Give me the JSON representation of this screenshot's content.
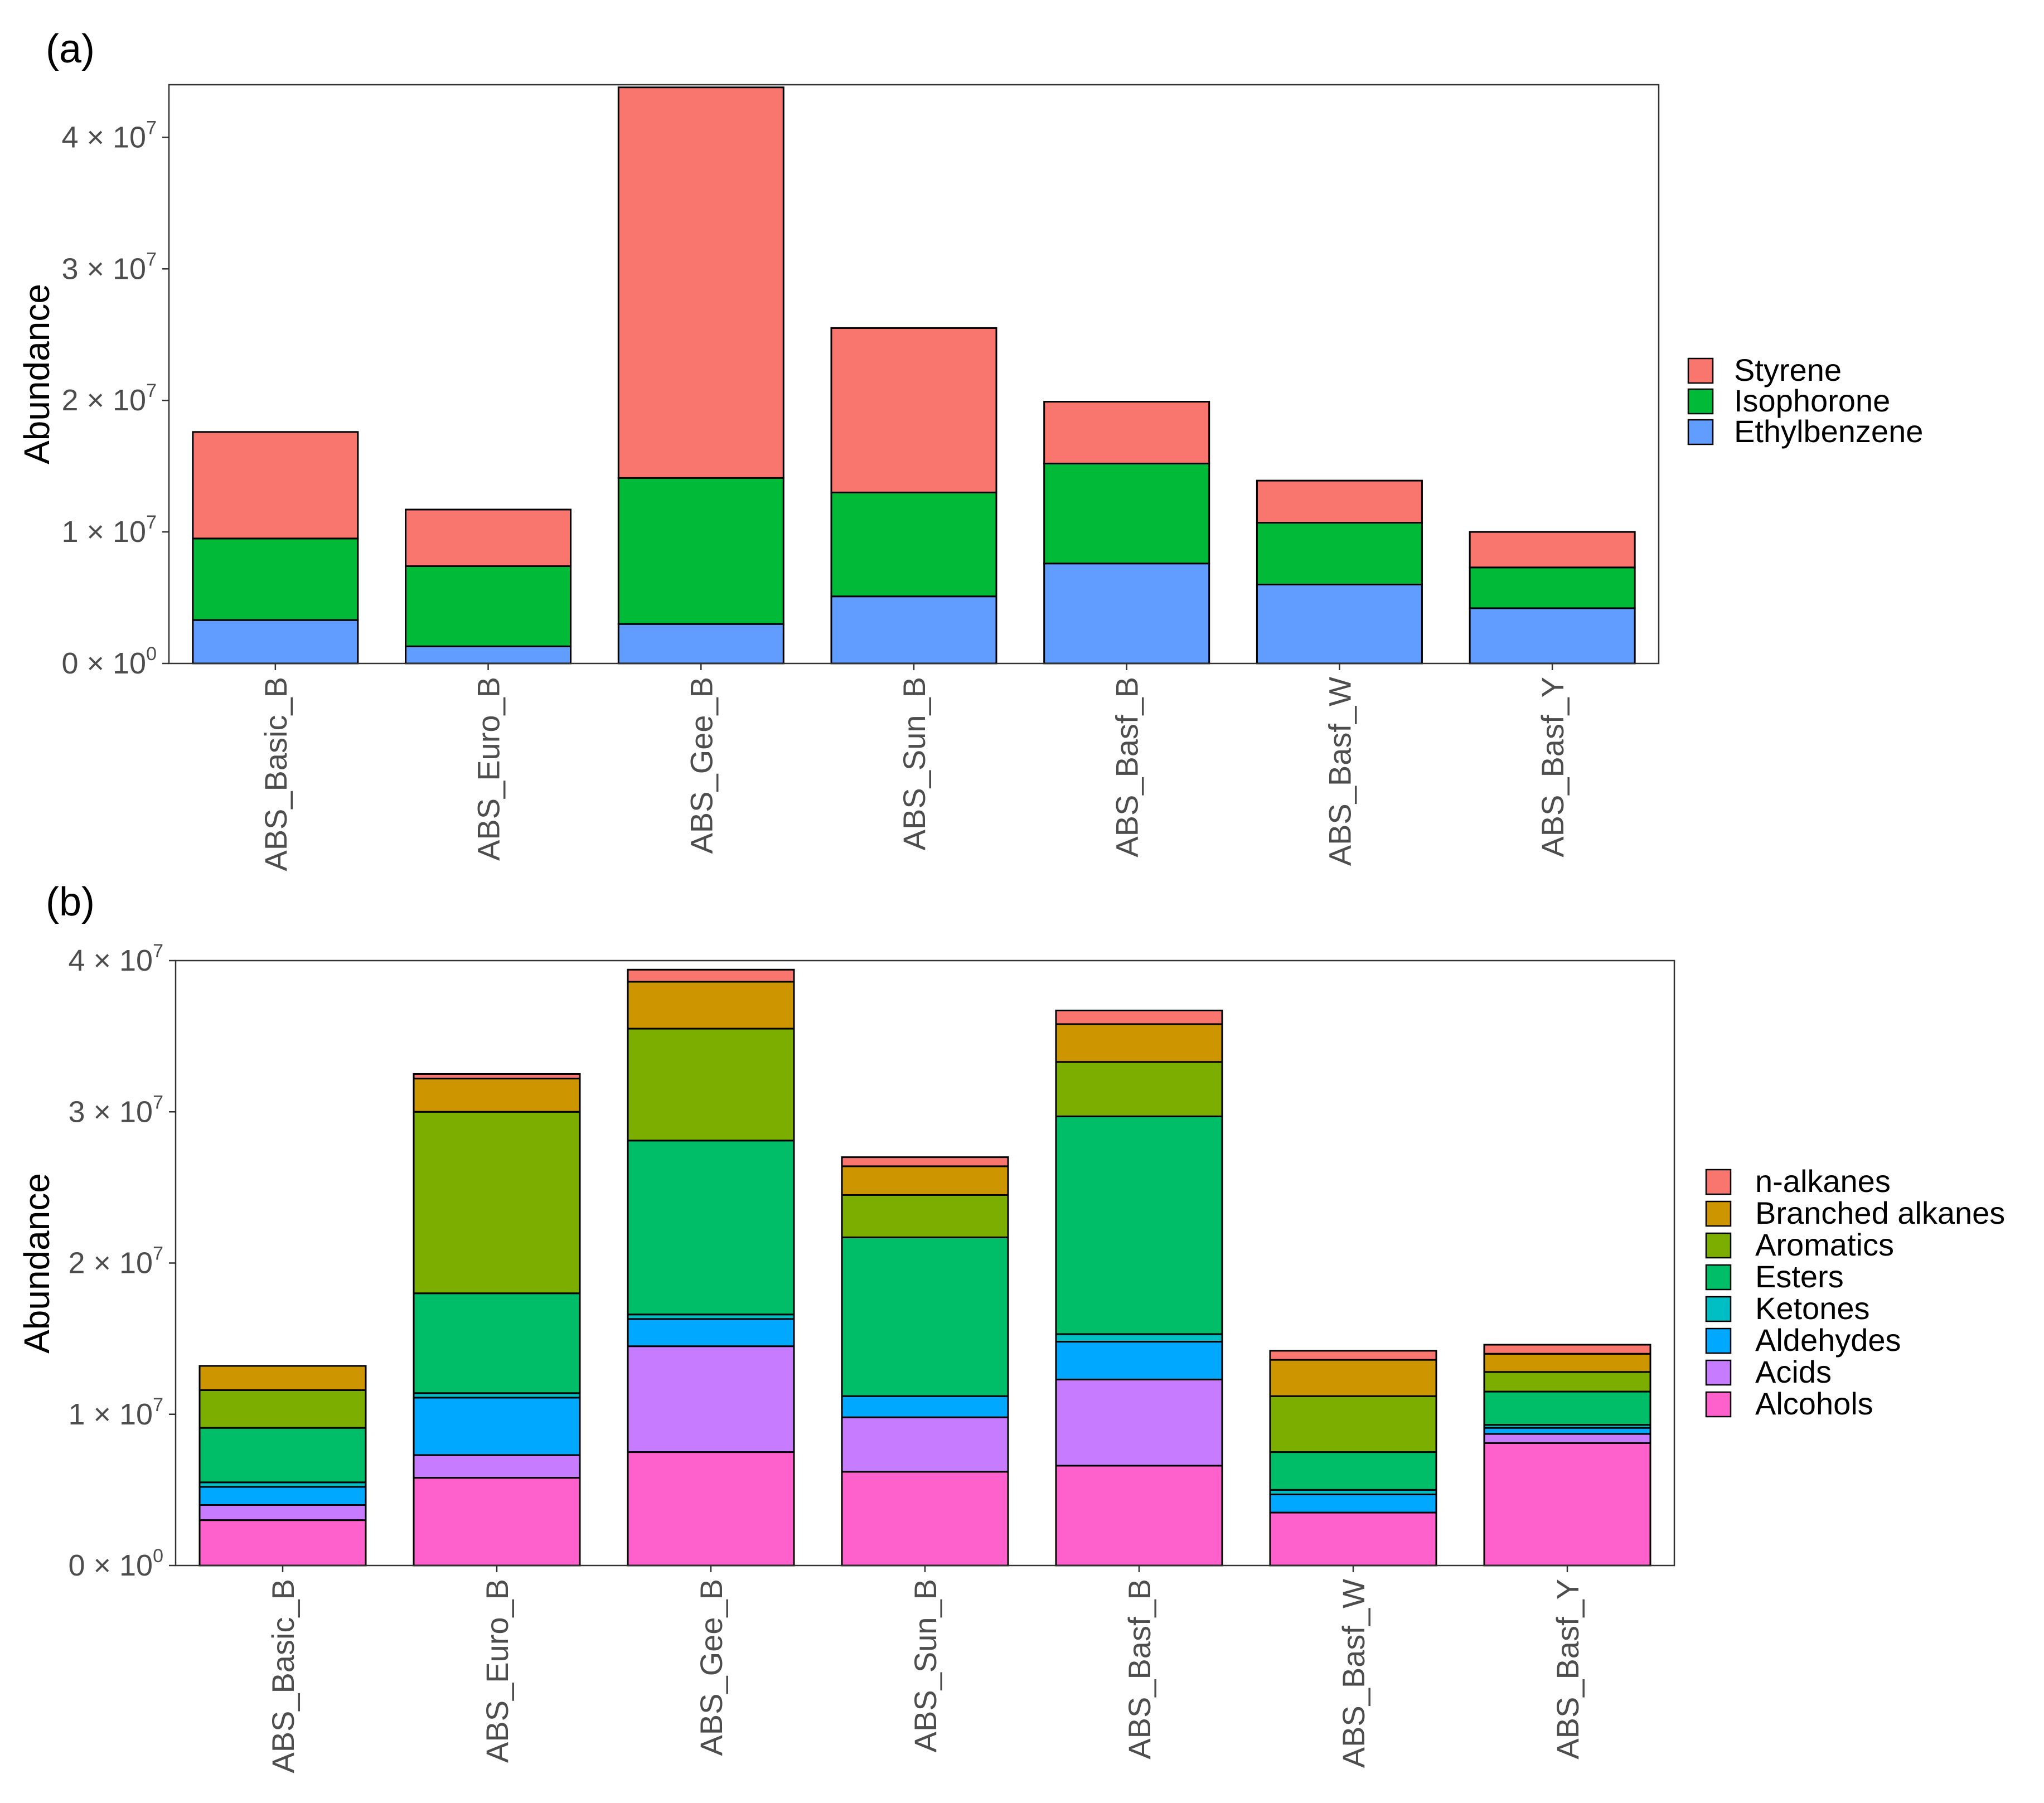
{
  "chart_data": [
    {
      "type": "bar",
      "stacked": true,
      "panel_label": "(a)",
      "ylabel": "Abundance",
      "xlabel": "",
      "ylim": [
        0,
        44000000
      ],
      "yticks": [
        {
          "value": 0,
          "mantissa": "0",
          "exponent": "0"
        },
        {
          "value": 10000000,
          "mantissa": "1",
          "exponent": "7"
        },
        {
          "value": 20000000,
          "mantissa": "2",
          "exponent": "7"
        },
        {
          "value": 30000000,
          "mantissa": "3",
          "exponent": "7"
        },
        {
          "value": 40000000,
          "mantissa": "4",
          "exponent": "7"
        }
      ],
      "categories": [
        "ABS_Basic_B",
        "ABS_Euro_B",
        "ABS_Gee_B",
        "ABS_Sun_B",
        "ABS_Basf_B",
        "ABS_Basf_W",
        "ABS_Basf_Y"
      ],
      "series": [
        {
          "name": "Ethylbenzene",
          "color": "#619CFF",
          "values": [
            3300000,
            1300000,
            3000000,
            5100000,
            7600000,
            6000000,
            4200000
          ]
        },
        {
          "name": "Isophorone",
          "color": "#00BA38",
          "values": [
            6200000,
            6100000,
            11100000,
            7900000,
            7600000,
            4700000,
            3100000
          ]
        },
        {
          "name": "Styrene",
          "color": "#F8766D",
          "values": [
            8100000,
            4300000,
            29700000,
            12500000,
            4700000,
            3200000,
            2700000
          ]
        }
      ],
      "legend_order": [
        "Styrene",
        "Isophorone",
        "Ethylbenzene"
      ],
      "legend_position": "right"
    },
    {
      "type": "bar",
      "stacked": true,
      "panel_label": "(b)",
      "ylabel": "Abundance",
      "xlabel": "",
      "ylim": [
        0,
        40000000
      ],
      "yticks": [
        {
          "value": 0,
          "mantissa": "0",
          "exponent": "0"
        },
        {
          "value": 10000000,
          "mantissa": "1",
          "exponent": "7"
        },
        {
          "value": 20000000,
          "mantissa": "2",
          "exponent": "7"
        },
        {
          "value": 30000000,
          "mantissa": "3",
          "exponent": "7"
        },
        {
          "value": 40000000,
          "mantissa": "4",
          "exponent": "7"
        }
      ],
      "categories": [
        "ABS_Basic_B",
        "ABS_Euro_B",
        "ABS_Gee_B",
        "ABS_Sun_B",
        "ABS_Basf_B",
        "ABS_Basf_W",
        "ABS_Basf_Y"
      ],
      "series": [
        {
          "name": "Alcohols",
          "color": "#FF61CC",
          "values": [
            3000000,
            5800000,
            7500000,
            6200000,
            6600000,
            3500000,
            8100000
          ]
        },
        {
          "name": "Acids",
          "color": "#C77CFF",
          "values": [
            1000000,
            1500000,
            7000000,
            3600000,
            5700000,
            0,
            600000
          ]
        },
        {
          "name": "Aldehydes",
          "color": "#00A9FF",
          "values": [
            1200000,
            3800000,
            1800000,
            1400000,
            2500000,
            1200000,
            400000
          ]
        },
        {
          "name": "Ketones",
          "color": "#00BFC4",
          "values": [
            300000,
            300000,
            300000,
            0,
            500000,
            300000,
            200000
          ]
        },
        {
          "name": "Esters",
          "color": "#00BE67",
          "values": [
            3600000,
            6600000,
            11500000,
            10500000,
            14400000,
            2500000,
            2200000
          ]
        },
        {
          "name": "Aromatics",
          "color": "#7CAE00",
          "values": [
            2500000,
            12000000,
            7400000,
            2800000,
            3600000,
            3700000,
            1300000
          ]
        },
        {
          "name": "Branched alkanes",
          "color": "#CD9600",
          "values": [
            1600000,
            2200000,
            3100000,
            1900000,
            2500000,
            2400000,
            1200000
          ]
        },
        {
          "name": "n-alkanes",
          "color": "#F8766D",
          "values": [
            0,
            300000,
            800000,
            600000,
            900000,
            600000,
            600000
          ]
        }
      ],
      "legend_order": [
        "n-alkanes",
        "Branched alkanes",
        "Aromatics",
        "Esters",
        "Ketones",
        "Aldehydes",
        "Acids",
        "Alcohols"
      ],
      "legend_position": "right"
    }
  ]
}
